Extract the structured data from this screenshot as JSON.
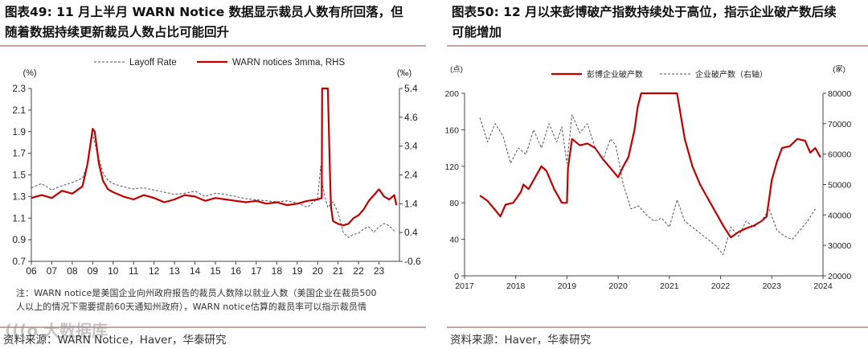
{
  "left": {
    "title_line1": "图表49:  11 月上半月 WARN Notice 数据显示裁员人数有所回落，但",
    "title_line2": "随着数据持续更新裁员人数占比可能回升",
    "note_line1": "注：WARN notice是美国企业向州政府报告的裁员人数除以就业人数（美国企业在裁员500",
    "note_line2": "人以上的情况下需要提前60天通知州政府），WARN notice估算的裁员率可以指示裁员情",
    "source": "资料来源：WARN Notice，Haver，华泰研究",
    "watermark": "(((o 大数据库"
  },
  "right": {
    "title_line1": "图表50:   12 月以来彭博破产指数持续处于高位，指示企业破产数后续",
    "title_line2": "可能增加",
    "source": "资料来源：Haver，华泰研究"
  },
  "colors": {
    "red": "#c00000",
    "dash": "#555555",
    "rule": "#c8a4a4"
  },
  "chart_data": [
    {
      "type": "line",
      "y_unit_left": "(%)",
      "y_unit_right": "(‰)",
      "ylim_left": [
        0.7,
        2.3
      ],
      "ylim_right": [
        -0.6,
        5.4
      ],
      "y_ticks_left": [
        "2.3",
        "2.1",
        "1.9",
        "1.7",
        "1.5",
        "1.3",
        "1.1",
        "0.9",
        "0.7"
      ],
      "y_ticks_right": [
        "5.4",
        "4.6",
        "3.4",
        "2.4",
        "1.4",
        "0.4",
        "-0.6"
      ],
      "x_ticks": [
        "06",
        "07",
        "08",
        "09",
        "10",
        "11",
        "12",
        "13",
        "14",
        "15",
        "16",
        "17",
        "18",
        "19",
        "20",
        "21",
        "22",
        "23"
      ],
      "legend_position": "top",
      "series": [
        {
          "name": "Layoff Rate",
          "axis": "left",
          "style": "dashed",
          "x": [
            2006.0,
            2006.5,
            2007.0,
            2007.5,
            2008.0,
            2008.5,
            2008.75,
            2009.0,
            2009.2,
            2009.5,
            2009.75,
            2010.0,
            2010.5,
            2011.0,
            2011.5,
            2012.0,
            2012.5,
            2013.0,
            2013.5,
            2014.0,
            2014.5,
            2015.0,
            2015.5,
            2016.0,
            2016.5,
            2017.0,
            2017.5,
            2018.0,
            2018.5,
            2019.0,
            2019.5,
            2020.0,
            2020.15,
            2020.25,
            2020.35,
            2020.5,
            2020.75,
            2021.0,
            2021.25,
            2021.5,
            2021.75,
            2022.0,
            2022.25,
            2022.5,
            2022.75,
            2023.0,
            2023.25,
            2023.5,
            2023.75
          ],
          "y": [
            1.38,
            1.42,
            1.36,
            1.4,
            1.43,
            1.47,
            1.6,
            1.88,
            1.72,
            1.52,
            1.45,
            1.42,
            1.39,
            1.37,
            1.38,
            1.36,
            1.34,
            1.32,
            1.33,
            1.35,
            1.3,
            1.33,
            1.32,
            1.3,
            1.28,
            1.27,
            1.26,
            1.25,
            1.26,
            1.24,
            1.2,
            1.28,
            1.58,
            1.4,
            1.3,
            1.2,
            1.25,
            1.15,
            0.97,
            0.92,
            0.95,
            0.96,
            1.0,
            1.02,
            0.97,
            1.02,
            1.05,
            1.03,
            0.98
          ]
        },
        {
          "name": "WARN notices 3mma, RHS",
          "axis": "right",
          "style": "solid",
          "x": [
            2006.0,
            2006.5,
            2007.0,
            2007.5,
            2008.0,
            2008.5,
            2008.75,
            2009.0,
            2009.1,
            2009.3,
            2009.5,
            2009.75,
            2010.0,
            2010.5,
            2011.0,
            2011.5,
            2012.0,
            2012.5,
            2013.0,
            2013.5,
            2014.0,
            2014.5,
            2015.0,
            2015.5,
            2016.0,
            2016.5,
            2017.0,
            2017.5,
            2018.0,
            2018.5,
            2019.0,
            2019.5,
            2020.0,
            2020.2,
            2020.22,
            2020.5,
            2020.6,
            2020.65,
            2020.75,
            2021.0,
            2021.25,
            2021.5,
            2021.75,
            2022.0,
            2022.25,
            2022.5,
            2022.75,
            2023.0,
            2023.25,
            2023.5,
            2023.75,
            2023.85
          ],
          "y": [
            1.6,
            1.7,
            1.6,
            1.85,
            1.75,
            2.0,
            2.8,
            4.0,
            3.9,
            2.8,
            2.2,
            1.9,
            1.8,
            1.65,
            1.55,
            1.7,
            1.6,
            1.45,
            1.55,
            1.7,
            1.65,
            1.5,
            1.6,
            1.55,
            1.5,
            1.45,
            1.5,
            1.4,
            1.45,
            1.35,
            1.4,
            1.5,
            1.55,
            1.6,
            5.6,
            5.6,
            2.5,
            1.3,
            0.8,
            0.7,
            0.65,
            0.7,
            0.9,
            1.0,
            1.2,
            1.5,
            1.7,
            1.9,
            1.65,
            1.55,
            1.7,
            1.35
          ]
        }
      ]
    },
    {
      "type": "line",
      "y_unit_left": "(点)",
      "y_unit_right": "(家)",
      "ylim_left": [
        0,
        200
      ],
      "ylim_right": [
        20000,
        80000
      ],
      "y_ticks_left": [
        "200",
        "160",
        "120",
        "80",
        "40",
        "0"
      ],
      "y_ticks_right": [
        "80000",
        "70000",
        "60000",
        "50000",
        "40000",
        "30000",
        "20000"
      ],
      "x_ticks": [
        "2017",
        "2018",
        "2019",
        "2020",
        "2021",
        "2022",
        "2023",
        "2024"
      ],
      "legend_position": "top",
      "series": [
        {
          "name": "彭博企业破产数",
          "axis": "left",
          "style": "solid",
          "x": [
            2017.3,
            2017.45,
            2017.6,
            2017.7,
            2017.8,
            2017.95,
            2018.1,
            2018.15,
            2018.25,
            2018.35,
            2018.5,
            2018.6,
            2018.75,
            2018.9,
            2019.0,
            2019.02,
            2019.1,
            2019.25,
            2019.4,
            2019.55,
            2019.7,
            2019.85,
            2020.0,
            2020.1,
            2020.2,
            2020.32,
            2020.38,
            2020.45,
            2021.15,
            2021.3,
            2021.45,
            2021.6,
            2021.75,
            2021.9,
            2022.05,
            2022.2,
            2022.35,
            2022.5,
            2022.65,
            2022.8,
            2022.9,
            2023.0,
            2023.1,
            2023.2,
            2023.35,
            2023.5,
            2023.65,
            2023.75,
            2023.85,
            2023.95
          ],
          "y": [
            88,
            82,
            72,
            65,
            78,
            80,
            92,
            100,
            95,
            105,
            120,
            115,
            95,
            80,
            80,
            118,
            150,
            143,
            145,
            140,
            128,
            118,
            108,
            120,
            130,
            160,
            185,
            200,
            200,
            150,
            120,
            100,
            85,
            70,
            55,
            42,
            48,
            52,
            55,
            60,
            65,
            105,
            125,
            140,
            142,
            150,
            148,
            135,
            140,
            130
          ]
        },
        {
          "name": "企业破产数（右轴）",
          "axis": "right",
          "style": "dashed",
          "x": [
            2017.3,
            2017.45,
            2017.6,
            2017.75,
            2017.9,
            2018.05,
            2018.2,
            2018.35,
            2018.5,
            2018.65,
            2018.8,
            2018.9,
            2019.0,
            2019.1,
            2019.25,
            2019.4,
            2019.55,
            2019.7,
            2019.85,
            2019.95,
            2020.1,
            2020.25,
            2020.4,
            2020.55,
            2020.7,
            2020.85,
            2021.0,
            2021.15,
            2021.3,
            2021.45,
            2021.6,
            2021.75,
            2021.9,
            2022.05,
            2022.2,
            2022.35,
            2022.5,
            2022.65,
            2022.8,
            2022.95,
            2023.1,
            2023.25,
            2023.4,
            2023.55,
            2023.7,
            2023.85
          ],
          "y": [
            72000,
            64000,
            70000,
            66000,
            57000,
            62000,
            60000,
            68000,
            62000,
            70000,
            64000,
            69000,
            57000,
            73000,
            67000,
            70000,
            62000,
            58000,
            65000,
            63000,
            50000,
            42000,
            43000,
            40000,
            38000,
            39000,
            36000,
            45000,
            38000,
            36000,
            34000,
            32000,
            30000,
            27000,
            36000,
            33000,
            38000,
            36000,
            38000,
            42000,
            35000,
            33000,
            32000,
            35000,
            38000,
            42000
          ]
        }
      ]
    }
  ]
}
